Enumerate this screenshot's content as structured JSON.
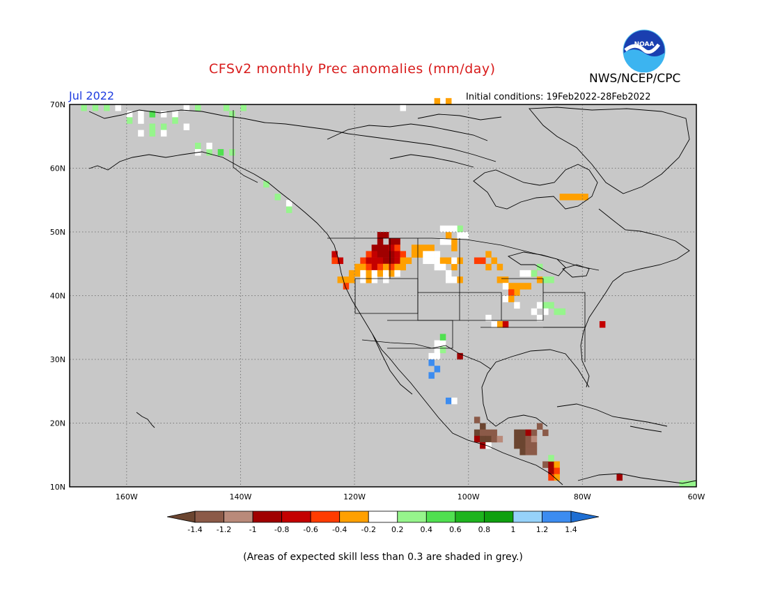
{
  "header": {
    "title": "CFSv2 monthly Prec anomalies (mm/day)",
    "organization": "NWS/NCEP/CPC",
    "logo_text": "NOAA",
    "month": "Jul 2022",
    "initial_conditions": "Initial conditions: 19Feb2022-28Feb2022"
  },
  "map": {
    "lat_labels": [
      "70N",
      "60N",
      "50N",
      "40N",
      "30N",
      "20N",
      "10N"
    ],
    "lon_labels": [
      "160W",
      "140W",
      "120W",
      "100W",
      "80W",
      "60W"
    ],
    "lon_range": [
      -170,
      -60
    ],
    "lat_range": [
      10,
      70
    ],
    "background_color": "#c8c8c8"
  },
  "colorbar": {
    "tick_labels": [
      "-1.4",
      "-1.2",
      "-1",
      "-0.8",
      "-0.6",
      "-0.4",
      "-0.2",
      "0.2",
      "0.4",
      "0.6",
      "0.8",
      "1",
      "1.2",
      "1.4"
    ],
    "colors": [
      "#6b4530",
      "#8b5a48",
      "#b98a7a",
      "#a00000",
      "#c40000",
      "#ff3c00",
      "#ffa000",
      "#ffffff",
      "#96f58c",
      "#50e050",
      "#1eb41e",
      "#0fa00f",
      "#96d2fa",
      "#3c8cf0",
      "#1e6ed2"
    ]
  },
  "footnote": "(Areas of expected skill less than 0.3 are shaded in grey.)"
}
